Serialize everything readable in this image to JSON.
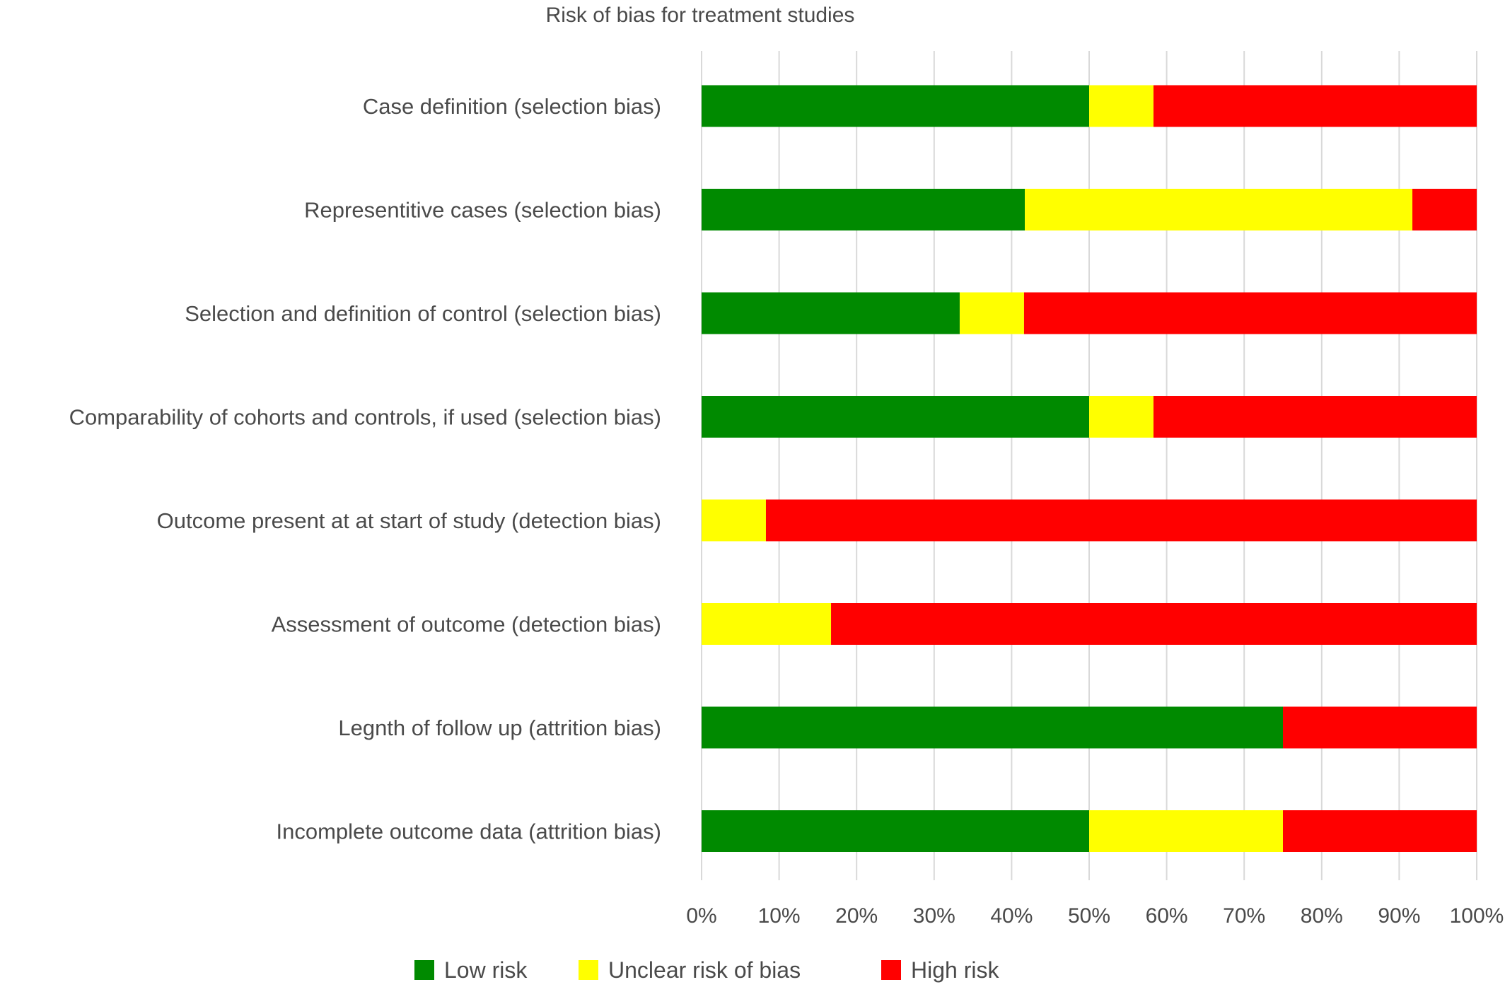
{
  "chart_data": {
    "type": "bar",
    "orientation": "horizontal",
    "stacked": true,
    "title": "Risk of bias for treatment studies",
    "categories": [
      "Case definition (selection bias)",
      "Representitive cases (selection bias)",
      "Selection and definition of control (selection bias)",
      "Comparability of cohorts and controls, if used (selection bias)",
      "Outcome present at at start of study (detection bias)",
      "Assessment of outcome (detection bias)",
      "Legnth of follow up (attrition bias)",
      "Incomplete outcome data (attrition bias)"
    ],
    "series": [
      {
        "name": "Low risk",
        "color": "#008a00",
        "values": [
          50,
          41.7,
          33.3,
          50,
          0,
          0,
          75,
          50
        ]
      },
      {
        "name": "Unclear risk of bias",
        "color": "#ffff00",
        "values": [
          8.3,
          50,
          8.3,
          8.3,
          8.3,
          16.7,
          0,
          25
        ]
      },
      {
        "name": "High risk",
        "color": "#ff0000",
        "values": [
          41.7,
          8.3,
          58.4,
          41.7,
          91.7,
          83.3,
          25,
          25
        ]
      }
    ],
    "xlim": [
      0,
      100
    ],
    "x_ticks": [
      "0%",
      "10%",
      "20%",
      "30%",
      "40%",
      "50%",
      "60%",
      "70%",
      "80%",
      "90%",
      "100%"
    ],
    "xlabel": "",
    "ylabel": "",
    "grid": true,
    "grid_color": "#d9d9d9",
    "legend_position": "bottom"
  }
}
